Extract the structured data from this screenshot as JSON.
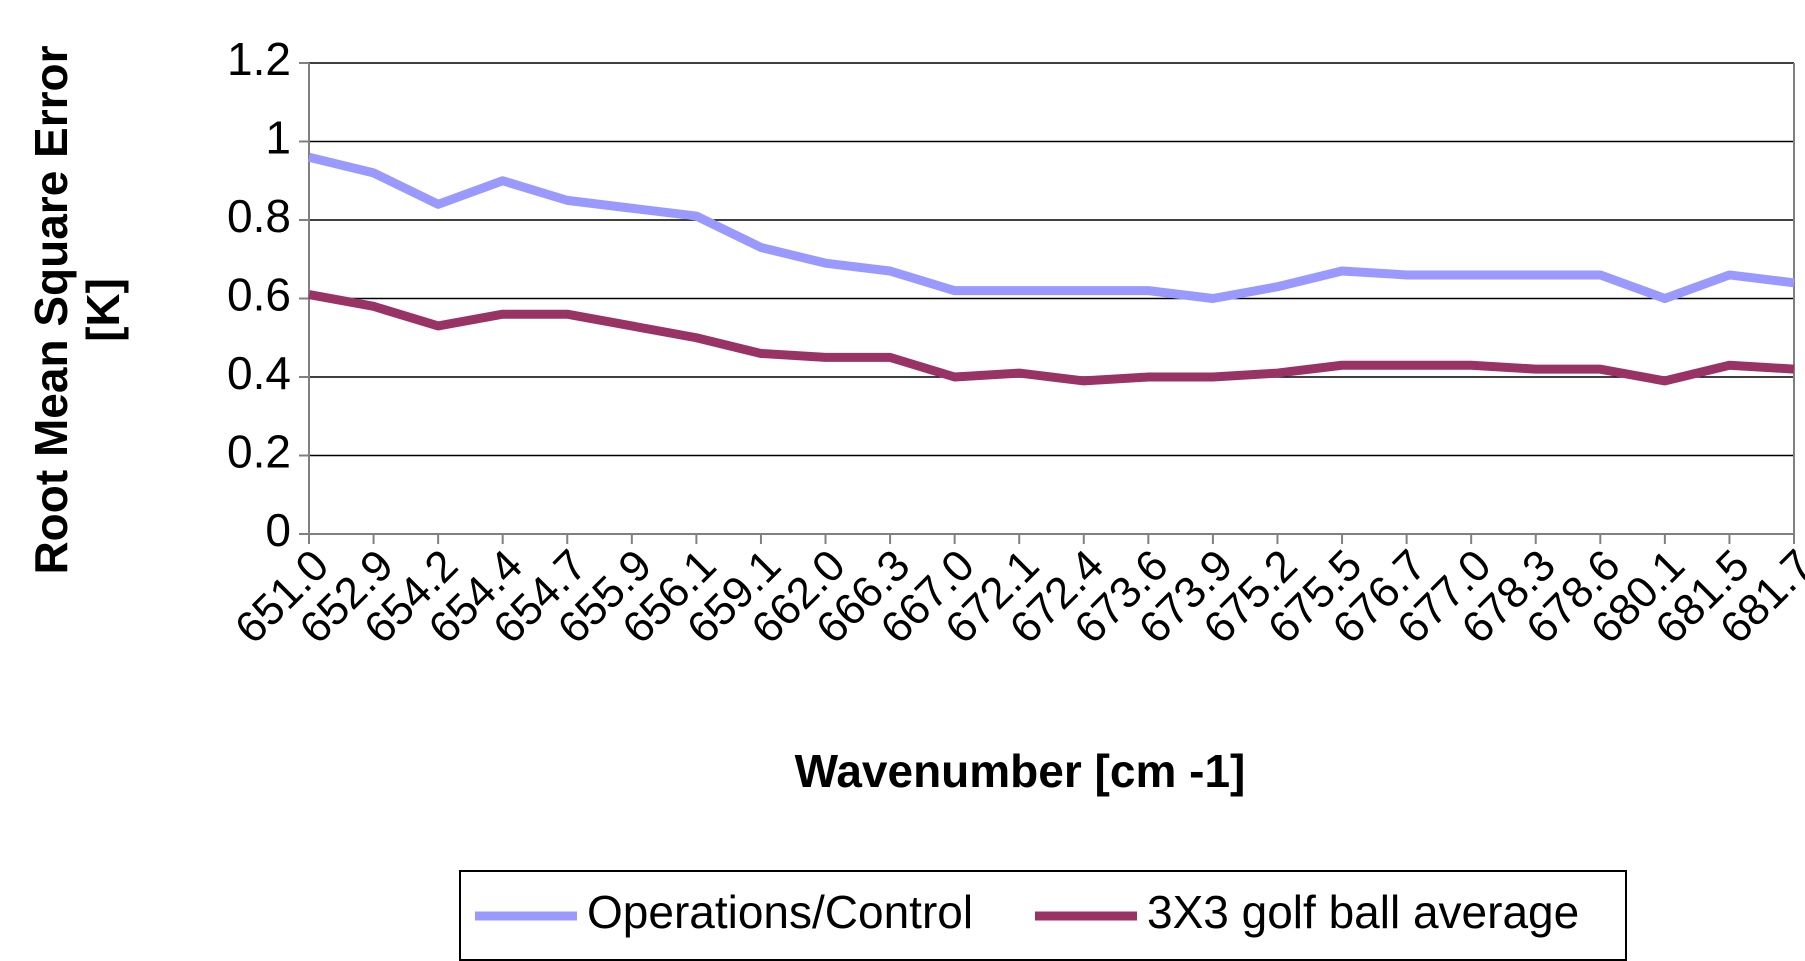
{
  "chart_data": {
    "type": "line",
    "xlabel": "Wavenumber [cm -1]",
    "ylabel": [
      "Root Mean Square Error",
      "[K]"
    ],
    "categories": [
      "651.0",
      "652.9",
      "654.2",
      "654.4",
      "654.7",
      "655.9",
      "656.1",
      "659.1",
      "662.0",
      "666.3",
      "667.0",
      "672.1",
      "672.4",
      "673.6",
      "673.9",
      "675.2",
      "675.5",
      "676.7",
      "677.0",
      "678.3",
      "678.6",
      "680.1",
      "681.5",
      "681.7"
    ],
    "series": [
      {
        "name": "Operations/Control",
        "color": "#9999ff",
        "values": [
          0.96,
          0.92,
          0.84,
          0.9,
          0.85,
          0.83,
          0.81,
          0.73,
          0.69,
          0.67,
          0.62,
          0.62,
          0.62,
          0.62,
          0.6,
          0.63,
          0.67,
          0.66,
          0.66,
          0.66,
          0.66,
          0.6,
          0.66,
          0.64
        ]
      },
      {
        "name": "3X3 golf ball average",
        "color": "#993366",
        "values": [
          0.61,
          0.58,
          0.53,
          0.56,
          0.56,
          0.53,
          0.5,
          0.46,
          0.45,
          0.45,
          0.4,
          0.41,
          0.39,
          0.4,
          0.4,
          0.41,
          0.43,
          0.43,
          0.43,
          0.42,
          0.42,
          0.39,
          0.43,
          0.42
        ]
      }
    ],
    "ylim": [
      0,
      1.2
    ],
    "yticks": [
      0,
      0.2,
      0.4,
      0.6,
      0.8,
      1,
      1.2
    ],
    "grid": true,
    "legend": "bottom"
  }
}
